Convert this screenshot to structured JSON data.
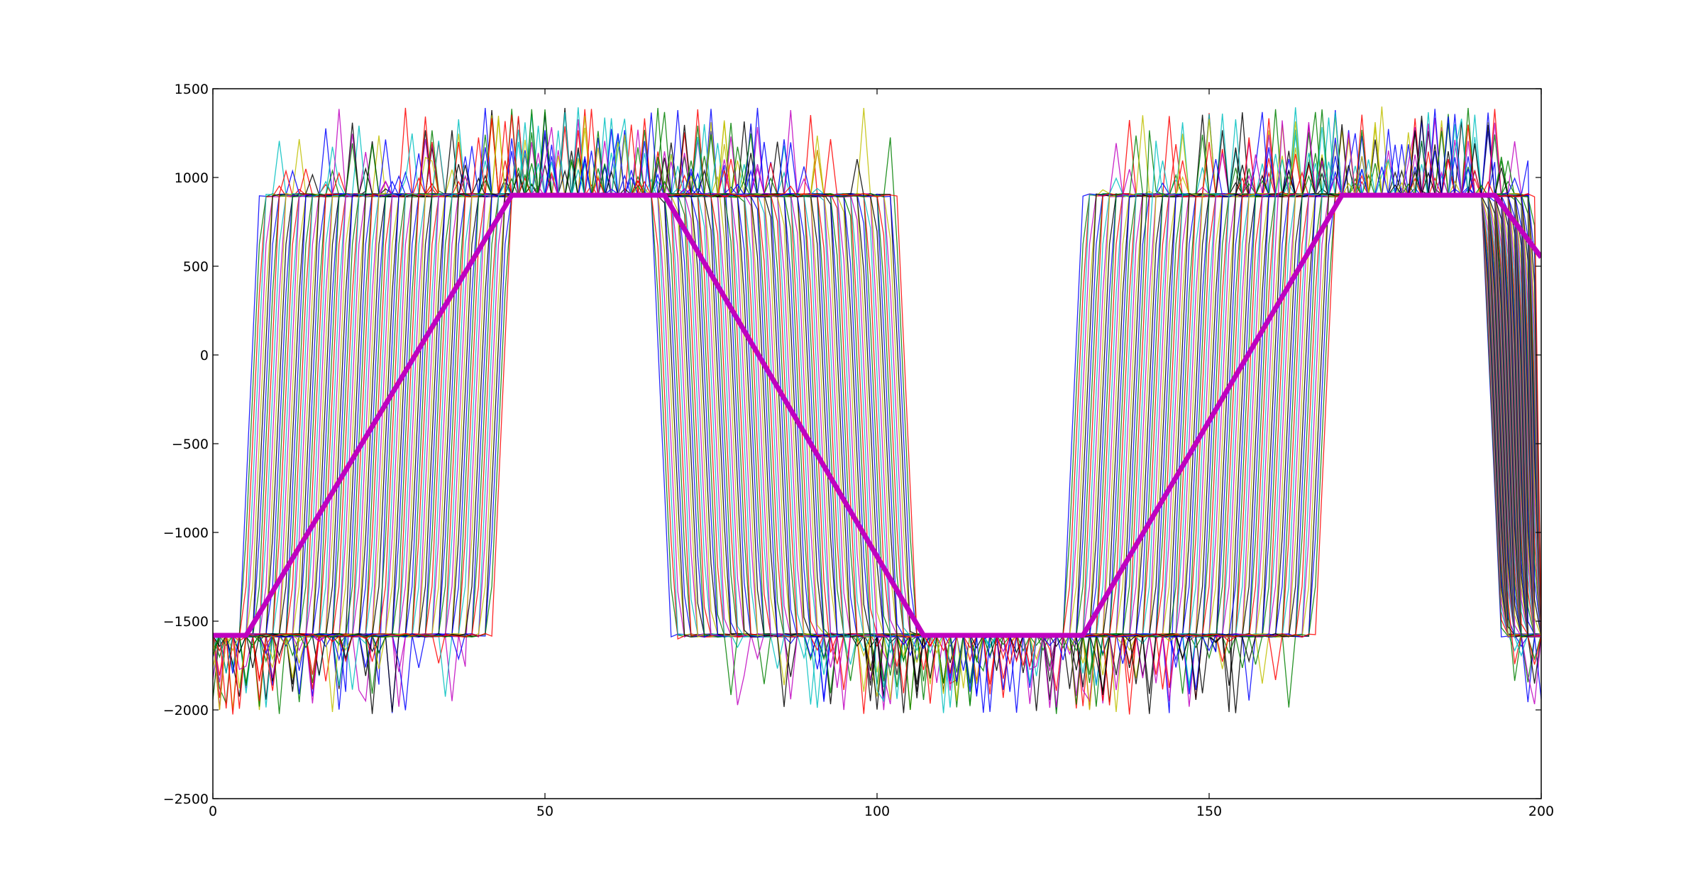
{
  "chart_data": {
    "type": "line",
    "title": "",
    "xlabel": "",
    "ylabel": "",
    "xlim": [
      0,
      200
    ],
    "ylim": [
      -2500,
      1500
    ],
    "xticks": [
      0,
      50,
      100,
      150,
      200
    ],
    "yticks": [
      -2500,
      -2000,
      -1500,
      -1000,
      -500,
      0,
      500,
      1000,
      1500
    ],
    "x_tick_labels": [
      "0",
      "50",
      "100",
      "150",
      "200"
    ],
    "y_tick_labels": [
      "−2500",
      "−2000",
      "−1500",
      "−1000",
      "−500",
      "0",
      "500",
      "1000",
      "1500"
    ],
    "grid": false,
    "legend": "none",
    "high_level": 900,
    "low_level": -1580,
    "noise_spike_amplitude": 500,
    "bundle": {
      "description_count": 115,
      "colors": [
        "#0000ff",
        "#008000",
        "#ff0000",
        "#00bfbf",
        "#bf00bf",
        "#bfbf00",
        "#000000"
      ],
      "transition_groups": [
        {
          "x_start": [
            4,
            42
          ],
          "x_end": [
            7,
            45
          ],
          "from": -1580,
          "to": 900
        },
        {
          "x_start": [
            66,
            103
          ],
          "x_end": [
            69,
            106
          ],
          "from": 900,
          "to": -1580
        },
        {
          "x_start": [
            128,
            166
          ],
          "x_end": [
            131,
            169
          ],
          "from": -1580,
          "to": 900
        },
        {
          "x_start": [
            191,
            199
          ],
          "x_end": [
            194,
            200
          ],
          "from": 900,
          "to": -1580
        }
      ]
    },
    "series": [
      {
        "color": "#bf00bf",
        "line_width": 7,
        "x": [
          0,
          5,
          45,
          68,
          107,
          131,
          170,
          193,
          200
        ],
        "y": [
          -1580,
          -1580,
          900,
          900,
          -1580,
          -1580,
          900,
          900,
          550
        ]
      }
    ]
  }
}
